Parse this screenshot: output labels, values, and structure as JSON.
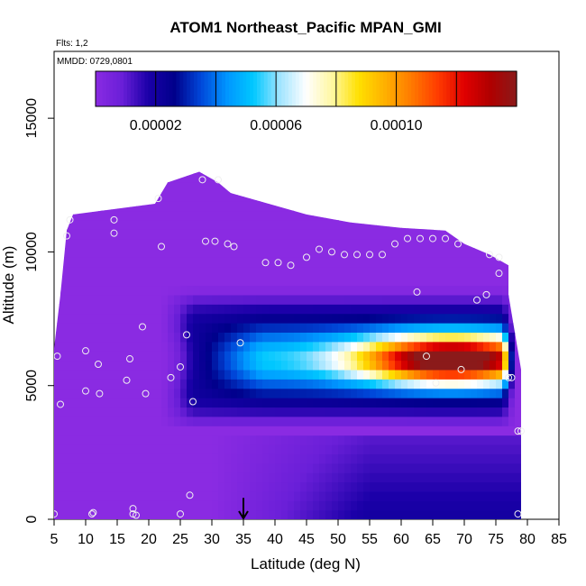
{
  "chart_data": {
    "type": "heatmap",
    "title": "ATOM1 Northeast_Pacific MPAN_GMI",
    "annotations": [
      "Flts: 1,2",
      "MMDD: 0729,0801"
    ],
    "xlabel": "Latitude (deg N)",
    "ylabel": "Altitude (m)",
    "xlim": [
      5,
      85
    ],
    "ylim": [
      0,
      17500
    ],
    "xticks": [
      "5",
      "10",
      "15",
      "20",
      "25",
      "30",
      "35",
      "40",
      "45",
      "50",
      "55",
      "60",
      "65",
      "70",
      "75",
      "80",
      "85"
    ],
    "yticks": [
      "0",
      "5000",
      "10000",
      "15000"
    ],
    "colorbar": {
      "range": [
        0,
        0.00014
      ],
      "tick_values": [
        2e-05,
        6e-05,
        0.0001
      ],
      "tick_labels": [
        "0.00002",
        "0.00006",
        "0.00010"
      ],
      "colors": [
        "#8a2be2",
        "#6a1fd8",
        "#1b00a8",
        "#00008b",
        "#0047d9",
        "#0096ff",
        "#00c8ff",
        "#a0e4ff",
        "#ffffff",
        "#fff7a0",
        "#ffe000",
        "#ffb000",
        "#ff7a00",
        "#ff3c00",
        "#e00000",
        "#b00000",
        "#8b1a1a"
      ]
    },
    "field": {
      "background_color": "#8a2be2",
      "top_boundary_m": [
        [
          5,
          6400
        ],
        [
          6,
          8400
        ],
        [
          7,
          10800
        ],
        [
          8,
          11400
        ],
        [
          21,
          11800
        ],
        [
          23,
          12600
        ],
        [
          28,
          13000
        ],
        [
          31,
          12600
        ],
        [
          33,
          12200
        ],
        [
          39,
          11800
        ],
        [
          45,
          11400
        ],
        [
          52,
          11100
        ],
        [
          60,
          10900
        ],
        [
          67,
          10800
        ],
        [
          70,
          10300
        ],
        [
          74,
          9900
        ],
        [
          77,
          9500
        ],
        [
          77,
          8400
        ],
        [
          79,
          5600
        ],
        [
          79,
          3200
        ],
        [
          79,
          0
        ]
      ],
      "plume": {
        "lat_min": 25,
        "lat_max": 77,
        "alt_center_m": 6000,
        "alt_half_width_m": 1600,
        "peak_lat": 68,
        "peak_value": 0.000135
      },
      "lower_layer": {
        "lat_min": 30,
        "lat_max": 79,
        "alt_top_m": 3000,
        "value": 2e-05
      }
    },
    "flight_track_points": [
      [
        5,
        200
      ],
      [
        5.5,
        6100
      ],
      [
        6,
        4300
      ],
      [
        7,
        10600
      ],
      [
        7.5,
        11200
      ],
      [
        10,
        6300
      ],
      [
        10,
        4800
      ],
      [
        11,
        200
      ],
      [
        11.2,
        250
      ],
      [
        12,
        5800
      ],
      [
        12.2,
        4700
      ],
      [
        14.5,
        11200
      ],
      [
        14.5,
        10700
      ],
      [
        16.5,
        5200
      ],
      [
        17,
        6000
      ],
      [
        17.5,
        400
      ],
      [
        17.5,
        200
      ],
      [
        18,
        150
      ],
      [
        19,
        7200
      ],
      [
        19.5,
        4700
      ],
      [
        21.5,
        12000
      ],
      [
        22,
        10200
      ],
      [
        23.5,
        5300
      ],
      [
        25,
        5700
      ],
      [
        25,
        200
      ],
      [
        26,
        6900
      ],
      [
        26.5,
        900
      ],
      [
        27,
        4400
      ],
      [
        28.5,
        12700
      ],
      [
        29,
        10400
      ],
      [
        30.5,
        10400
      ],
      [
        31,
        12700
      ],
      [
        32.5,
        10300
      ],
      [
        33.5,
        10200
      ],
      [
        34.5,
        6600
      ],
      [
        38.5,
        9600
      ],
      [
        40.5,
        9600
      ],
      [
        42.5,
        9500
      ],
      [
        45,
        9800
      ],
      [
        47,
        10100
      ],
      [
        49,
        10000
      ],
      [
        51,
        9900
      ],
      [
        53,
        9900
      ],
      [
        55,
        9900
      ],
      [
        57,
        9900
      ],
      [
        59,
        10300
      ],
      [
        61,
        10500
      ],
      [
        63,
        10500
      ],
      [
        65,
        10500
      ],
      [
        67,
        10500
      ],
      [
        69,
        10300
      ],
      [
        62.5,
        8500
      ],
      [
        64,
        6100
      ],
      [
        65.5,
        5100
      ],
      [
        69.5,
        5600
      ],
      [
        72,
        8200
      ],
      [
        74,
        9900
      ],
      [
        75.5,
        9800
      ],
      [
        75.5,
        9200
      ],
      [
        73.5,
        8400
      ],
      [
        77,
        5300
      ],
      [
        77.5,
        5300
      ],
      [
        78.5,
        3300
      ],
      [
        79,
        3300
      ],
      [
        78.5,
        200
      ]
    ],
    "arrow_marker": {
      "lat": 35,
      "alt_from_m": 800,
      "alt_to_m": 0
    }
  }
}
